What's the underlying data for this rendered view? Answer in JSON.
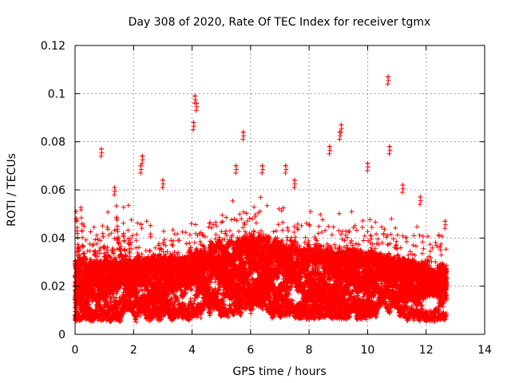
{
  "chart_data": {
    "type": "scatter",
    "title": "Day 308 of 2020, Rate Of TEC Index for receiver tgmx",
    "xlabel": "GPS time / hours",
    "ylabel": "ROTI / TECUs",
    "xlim": [
      0,
      14
    ],
    "ylim": [
      0,
      0.12
    ],
    "xticks": [
      0,
      2,
      4,
      6,
      8,
      10,
      12,
      14
    ],
    "xtick_labels": [
      "0",
      "2",
      "4",
      "6",
      "8",
      "10",
      "12",
      "14"
    ],
    "yticks": [
      0,
      0.02,
      0.04,
      0.06,
      0.08,
      0.1,
      0.12
    ],
    "ytick_labels": [
      "0",
      "0.02",
      "0.04",
      "0.06",
      "0.08",
      "0.1",
      "0.12"
    ],
    "grid": true,
    "marker": "+",
    "marker_color": "#ff0000",
    "series": [
      {
        "name": "ROTI",
        "x_range": [
          0.0,
          12.7
        ],
        "sample_interval_hours": 0.0083,
        "n_satellite_tracks": 14,
        "baseline_range": [
          0.005,
          0.03
        ],
        "notable_points": [
          {
            "x": 0.9,
            "y": 0.077
          },
          {
            "x": 1.35,
            "y": 0.061
          },
          {
            "x": 2.3,
            "y": 0.074
          },
          {
            "x": 2.25,
            "y": 0.07
          },
          {
            "x": 3.0,
            "y": 0.064
          },
          {
            "x": 4.1,
            "y": 0.099
          },
          {
            "x": 4.15,
            "y": 0.096
          },
          {
            "x": 4.05,
            "y": 0.088
          },
          {
            "x": 5.5,
            "y": 0.07
          },
          {
            "x": 5.75,
            "y": 0.084
          },
          {
            "x": 6.4,
            "y": 0.07
          },
          {
            "x": 7.2,
            "y": 0.07
          },
          {
            "x": 7.5,
            "y": 0.064
          },
          {
            "x": 8.7,
            "y": 0.078
          },
          {
            "x": 9.1,
            "y": 0.087
          },
          {
            "x": 9.05,
            "y": 0.084
          },
          {
            "x": 10.0,
            "y": 0.071
          },
          {
            "x": 10.7,
            "y": 0.107
          },
          {
            "x": 10.75,
            "y": 0.078
          },
          {
            "x": 11.2,
            "y": 0.062
          },
          {
            "x": 11.8,
            "y": 0.057
          },
          {
            "x": 12.65,
            "y": 0.047
          }
        ]
      }
    ]
  }
}
